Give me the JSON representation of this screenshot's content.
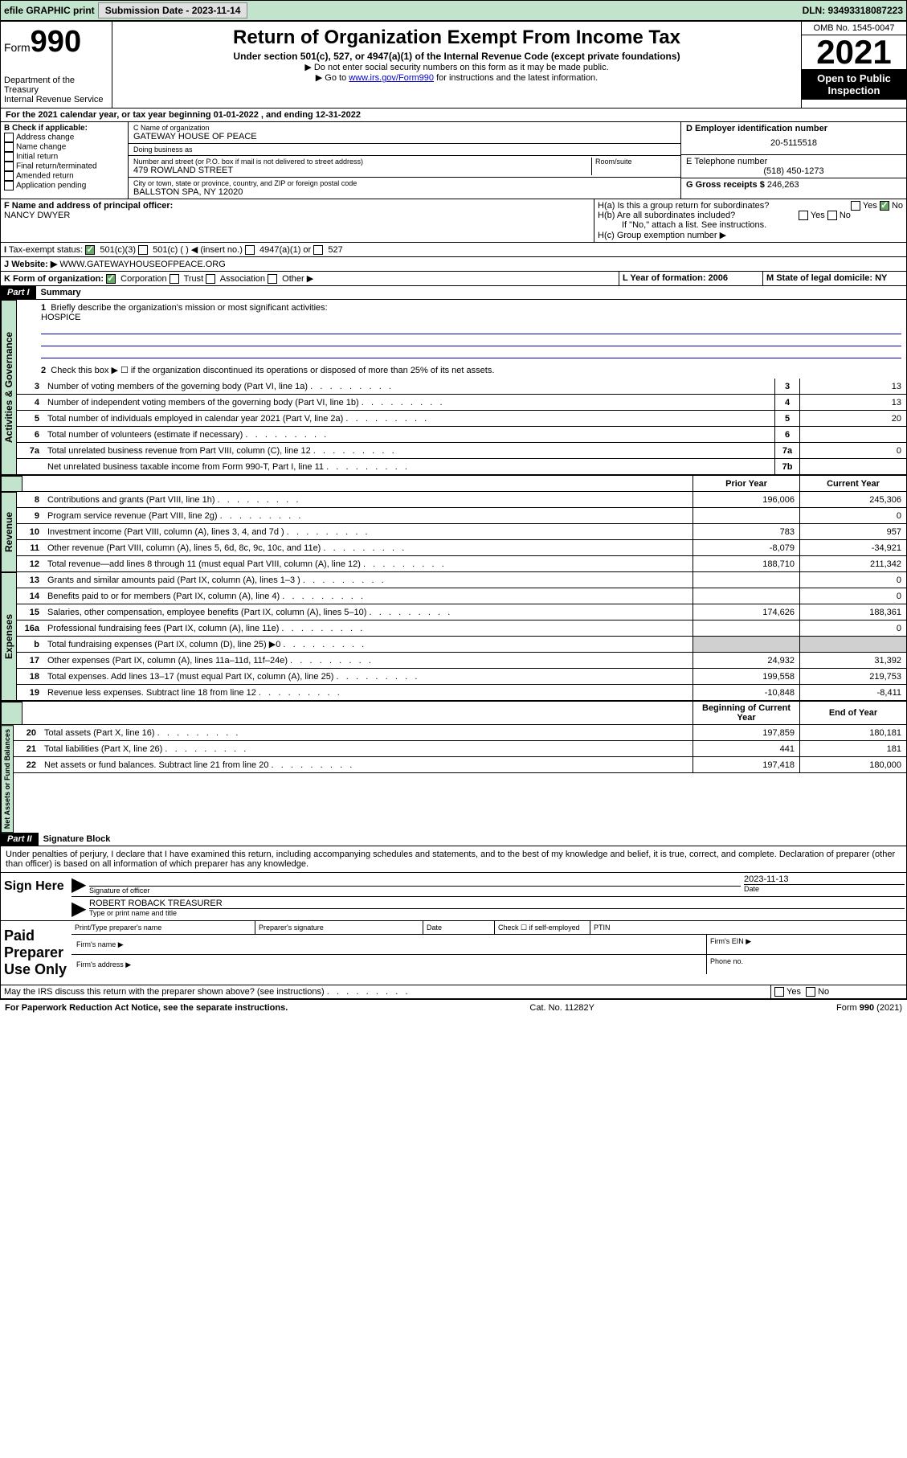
{
  "topbar": {
    "efile": "efile GRAPHIC print",
    "subdate_lbl": "Submission Date - 2023-11-14",
    "dln": "DLN: 93493318087223"
  },
  "hdr": {
    "form": "Form",
    "f990": "990",
    "dept": "Department of the Treasury",
    "irs": "Internal Revenue Service",
    "title": "Return of Organization Exempt From Income Tax",
    "sub": "Under section 501(c), 527, or 4947(a)(1) of the Internal Revenue Code (except private foundations)",
    "l1": "▶ Do not enter social security numbers on this form as it may be made public.",
    "l2a": "▶ Go to ",
    "l2link": "www.irs.gov/Form990",
    "l2b": " for instructions and the latest information.",
    "omb": "OMB No. 1545-0047",
    "year": "2021",
    "open": "Open to Public Inspection"
  },
  "a": {
    "txt": "For the 2021 calendar year, or tax year beginning 01-01-2022   , and ending 12-31-2022"
  },
  "b": {
    "lbl": "B Check if applicable:",
    "opts": [
      "Address change",
      "Name change",
      "Initial return",
      "Final return/terminated",
      "Amended return",
      "Application pending"
    ]
  },
  "c": {
    "name_lbl": "C Name of organization",
    "name": "GATEWAY HOUSE OF PEACE",
    "dba_lbl": "Doing business as",
    "dba": "",
    "addr_lbl": "Number and street (or P.O. box if mail is not delivered to street address)",
    "room_lbl": "Room/suite",
    "addr": "479 ROWLAND STREET",
    "city_lbl": "City or town, state or province, country, and ZIP or foreign postal code",
    "city": "BALLSTON SPA, NY  12020"
  },
  "d": {
    "lbl": "D Employer identification number",
    "val": "20-5115518"
  },
  "e": {
    "lbl": "E Telephone number",
    "val": "(518) 450-1273"
  },
  "g": {
    "lbl": "G Gross receipts $",
    "val": "246,263"
  },
  "f": {
    "lbl": "F Name and address of principal officer:",
    "val": "NANCY DWYER"
  },
  "h": {
    "a": "H(a)  Is this a group return for subordinates?",
    "b": "H(b)  Are all subordinates included?",
    "ifno": "If \"No,\" attach a list. See instructions.",
    "c": "H(c)  Group exemption number ▶",
    "yes": "Yes",
    "no": "No"
  },
  "i": {
    "lbl": "Tax-exempt status:",
    "o1": "501(c)(3)",
    "o2": "501(c) (  ) ◀ (insert no.)",
    "o3": "4947(a)(1) or",
    "o4": "527"
  },
  "j": {
    "lbl": "Website: ▶",
    "val": "WWW.GATEWAYHOUSEOFPEACE.ORG"
  },
  "k": {
    "lbl": "K Form of organization:",
    "o1": "Corporation",
    "o2": "Trust",
    "o3": "Association",
    "o4": "Other ▶"
  },
  "l": {
    "lbl": "L Year of formation: 2006"
  },
  "m": {
    "lbl": "M State of legal domicile: NY"
  },
  "p1": {
    "hdr": "Part I",
    "title": "Summary",
    "l1": "Briefly describe the organization's mission or most significant activities:",
    "mission": "HOSPICE",
    "l2": "Check this box ▶ ☐  if the organization discontinued its operations or disposed of more than 25% of its net assets.",
    "rows": [
      {
        "n": "3",
        "t": "Number of voting members of the governing body (Part VI, line 1a)",
        "box": "3",
        "v": "13"
      },
      {
        "n": "4",
        "t": "Number of independent voting members of the governing body (Part VI, line 1b)",
        "box": "4",
        "v": "13"
      },
      {
        "n": "5",
        "t": "Total number of individuals employed in calendar year 2021 (Part V, line 2a)",
        "box": "5",
        "v": "20"
      },
      {
        "n": "6",
        "t": "Total number of volunteers (estimate if necessary)",
        "box": "6",
        "v": ""
      },
      {
        "n": "7a",
        "t": "Total unrelated business revenue from Part VIII, column (C), line 12",
        "box": "7a",
        "v": "0"
      },
      {
        "n": "",
        "t": "Net unrelated business taxable income from Form 990-T, Part I, line 11",
        "box": "7b",
        "v": ""
      }
    ],
    "py": "Prior Year",
    "cy": "Current Year",
    "rev": [
      {
        "n": "8",
        "t": "Contributions and grants (Part VIII, line 1h)",
        "p": "196,006",
        "c": "245,306"
      },
      {
        "n": "9",
        "t": "Program service revenue (Part VIII, line 2g)",
        "p": "",
        "c": "0"
      },
      {
        "n": "10",
        "t": "Investment income (Part VIII, column (A), lines 3, 4, and 7d )",
        "p": "783",
        "c": "957"
      },
      {
        "n": "11",
        "t": "Other revenue (Part VIII, column (A), lines 5, 6d, 8c, 9c, 10c, and 11e)",
        "p": "-8,079",
        "c": "-34,921"
      },
      {
        "n": "12",
        "t": "Total revenue—add lines 8 through 11 (must equal Part VIII, column (A), line 12)",
        "p": "188,710",
        "c": "211,342"
      }
    ],
    "exp": [
      {
        "n": "13",
        "t": "Grants and similar amounts paid (Part IX, column (A), lines 1–3 )",
        "p": "",
        "c": "0"
      },
      {
        "n": "14",
        "t": "Benefits paid to or for members (Part IX, column (A), line 4)",
        "p": "",
        "c": "0"
      },
      {
        "n": "15",
        "t": "Salaries, other compensation, employee benefits (Part IX, column (A), lines 5–10)",
        "p": "174,626",
        "c": "188,361"
      },
      {
        "n": "16a",
        "t": "Professional fundraising fees (Part IX, column (A), line 11e)",
        "p": "",
        "c": "0"
      },
      {
        "n": "b",
        "t": "Total fundraising expenses (Part IX, column (D), line 25) ▶0",
        "p": "grey",
        "c": "grey"
      },
      {
        "n": "17",
        "t": "Other expenses (Part IX, column (A), lines 11a–11d, 11f–24e)",
        "p": "24,932",
        "c": "31,392"
      },
      {
        "n": "18",
        "t": "Total expenses. Add lines 13–17 (must equal Part IX, column (A), line 25)",
        "p": "199,558",
        "c": "219,753"
      },
      {
        "n": "19",
        "t": "Revenue less expenses. Subtract line 18 from line 12",
        "p": "-10,848",
        "c": "-8,411"
      }
    ],
    "boy": "Beginning of Current Year",
    "eoy": "End of Year",
    "na": [
      {
        "n": "20",
        "t": "Total assets (Part X, line 16)",
        "p": "197,859",
        "c": "180,181"
      },
      {
        "n": "21",
        "t": "Total liabilities (Part X, line 26)",
        "p": "441",
        "c": "181"
      },
      {
        "n": "22",
        "t": "Net assets or fund balances. Subtract line 21 from line 20",
        "p": "197,418",
        "c": "180,000"
      }
    ]
  },
  "tabs": {
    "ag": "Activities & Governance",
    "rev": "Revenue",
    "exp": "Expenses",
    "na": "Net Assets or Fund Balances"
  },
  "p2": {
    "hdr": "Part II",
    "title": "Signature Block",
    "decl": "Under penalties of perjury, I declare that I have examined this return, including accompanying schedules and statements, and to the best of my knowledge and belief, it is true, correct, and complete. Declaration of preparer (other than officer) is based on all information of which preparer has any knowledge.",
    "sign": "Sign Here",
    "sigoff": "Signature of officer",
    "date": "Date",
    "sigdate": "2023-11-13",
    "name": "ROBERT ROBACK  TREASURER",
    "name_lbl": "Type or print name and title",
    "paid": "Paid Preparer Use Only",
    "cols": {
      "c1": "Print/Type preparer's name",
      "c2": "Preparer's signature",
      "c3": "Date",
      "c4": "Check ☐ if self-employed",
      "c5": "PTIN"
    },
    "firm": "Firm's name  ▶",
    "ein": "Firm's EIN ▶",
    "faddr": "Firm's address ▶",
    "phone": "Phone no.",
    "may": "May the IRS discuss this return with the preparer shown above? (see instructions)",
    "yes": "Yes",
    "no": "No"
  },
  "foot": {
    "l": "For Paperwork Reduction Act Notice, see the separate instructions.",
    "m": "Cat. No. 11282Y",
    "r": "Form 990 (2021)"
  }
}
